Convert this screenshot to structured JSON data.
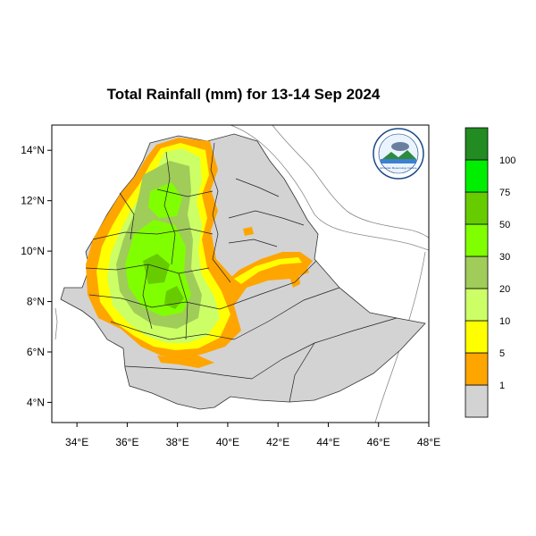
{
  "title": "Total Rainfall (mm) for 13-14 Sep 2024",
  "map": {
    "x_ticks": [
      "34°E",
      "36°E",
      "38°E",
      "40°E",
      "42°E",
      "44°E",
      "46°E",
      "48°E"
    ],
    "y_ticks": [
      "14°N",
      "12°N",
      "10°N",
      "8°N",
      "6°N",
      "4°N"
    ],
    "lon_range": [
      33,
      48
    ],
    "lat_range": [
      3.2,
      15
    ]
  },
  "legend": {
    "levels": [
      {
        "label": "1",
        "color": "#d3d3d3"
      },
      {
        "label": "5",
        "color": "#ffa500"
      },
      {
        "label": "10",
        "color": "#ffff00"
      },
      {
        "label": "20",
        "color": "#ccff66"
      },
      {
        "label": "30",
        "color": "#a0cc5a"
      },
      {
        "label": "50",
        "color": "#80ff00"
      },
      {
        "label": "75",
        "color": "#66cc00"
      },
      {
        "label": "100",
        "color": "#00ee00"
      },
      {
        "label": "",
        "color": "#228b22"
      }
    ]
  },
  "logo": {
    "text": "Ethiopian Meteorology Institute"
  }
}
